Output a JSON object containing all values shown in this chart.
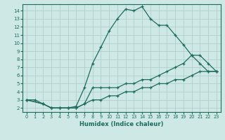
{
  "xlabel": "Humidex (Indice chaleur)",
  "xlim": [
    -0.5,
    23.5
  ],
  "ylim": [
    1.5,
    14.8
  ],
  "xticks": [
    0,
    1,
    2,
    3,
    4,
    5,
    6,
    7,
    8,
    9,
    10,
    11,
    12,
    13,
    14,
    15,
    16,
    17,
    18,
    19,
    20,
    21,
    22,
    23
  ],
  "yticks": [
    2,
    3,
    4,
    5,
    6,
    7,
    8,
    9,
    10,
    11,
    12,
    13,
    14
  ],
  "bg_color": "#cde8e5",
  "line_color": "#1e6b5e",
  "grid_color": "#b0d0cc",
  "line1_x": [
    0,
    1,
    2,
    3,
    4,
    5,
    6,
    7,
    8,
    9,
    10,
    11,
    12,
    13,
    14,
    15,
    16,
    17,
    18,
    19,
    20,
    21,
    22,
    23
  ],
  "line1_y": [
    3,
    3,
    2.5,
    2,
    2,
    2,
    2.2,
    4.5,
    7.5,
    9.5,
    11.5,
    13,
    14.2,
    14.0,
    14.5,
    13,
    12.2,
    12.2,
    11,
    9.8,
    8.5,
    7.5,
    6.5,
    6.5
  ],
  "line2_x": [
    0,
    2,
    3,
    4,
    5,
    6,
    7,
    8,
    9,
    10,
    11,
    12,
    13,
    14,
    15,
    16,
    17,
    18,
    19,
    20,
    21,
    22,
    23
  ],
  "line2_y": [
    3,
    2.5,
    2,
    2,
    2,
    2,
    2.5,
    4.5,
    4.5,
    4.5,
    4.5,
    5.0,
    5.0,
    5.5,
    5.5,
    6.0,
    6.5,
    7.0,
    7.5,
    8.5,
    8.5,
    7.5,
    6.5
  ],
  "line3_x": [
    0,
    2,
    3,
    4,
    5,
    6,
    7,
    8,
    9,
    10,
    11,
    12,
    13,
    14,
    15,
    16,
    17,
    18,
    19,
    20,
    21,
    22,
    23
  ],
  "line3_y": [
    3,
    2.5,
    2,
    2,
    2,
    2,
    2.5,
    3.0,
    3.0,
    3.5,
    3.5,
    4.0,
    4.0,
    4.5,
    4.5,
    5.0,
    5.0,
    5.5,
    5.5,
    6.0,
    6.5,
    6.5,
    6.5
  ]
}
